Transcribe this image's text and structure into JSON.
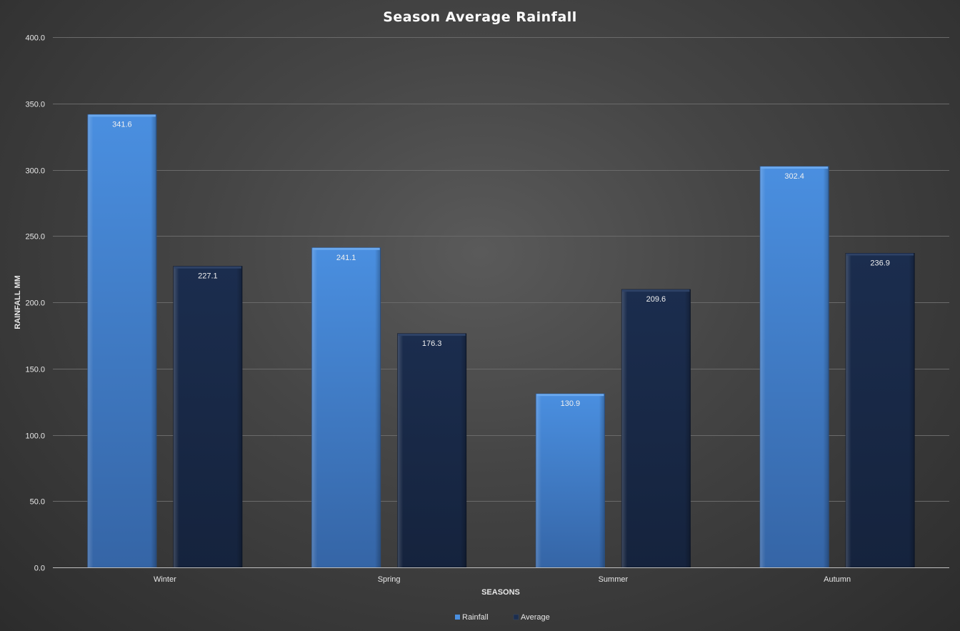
{
  "chart_data": {
    "type": "bar",
    "title": "Season Average Rainfall",
    "xlabel": "SEASONS",
    "ylabel": "RAINFALL MM",
    "categories": [
      "Winter",
      "Spring",
      "Summer",
      "Autumn"
    ],
    "series": [
      {
        "name": "Rainfall",
        "values": [
          341.6,
          241.1,
          130.9,
          302.4
        ],
        "color": "#4a8fe0",
        "label_text": [
          "341.6",
          "241.1",
          "130.9",
          "302.4"
        ]
      },
      {
        "name": "Average",
        "values": [
          227.1,
          176.3,
          209.6,
          236.9
        ],
        "color": "#17294a",
        "label_text": [
          "227.1",
          "176.3",
          "209.6",
          "236.9"
        ]
      }
    ],
    "ylim": [
      0,
      400
    ],
    "yticks": [
      "0.0",
      "50.0",
      "100.0",
      "150.0",
      "200.0",
      "250.0",
      "300.0",
      "350.0",
      "400.0"
    ],
    "grid": true,
    "legend_position": "bottom",
    "data_labels": "inside-top"
  }
}
